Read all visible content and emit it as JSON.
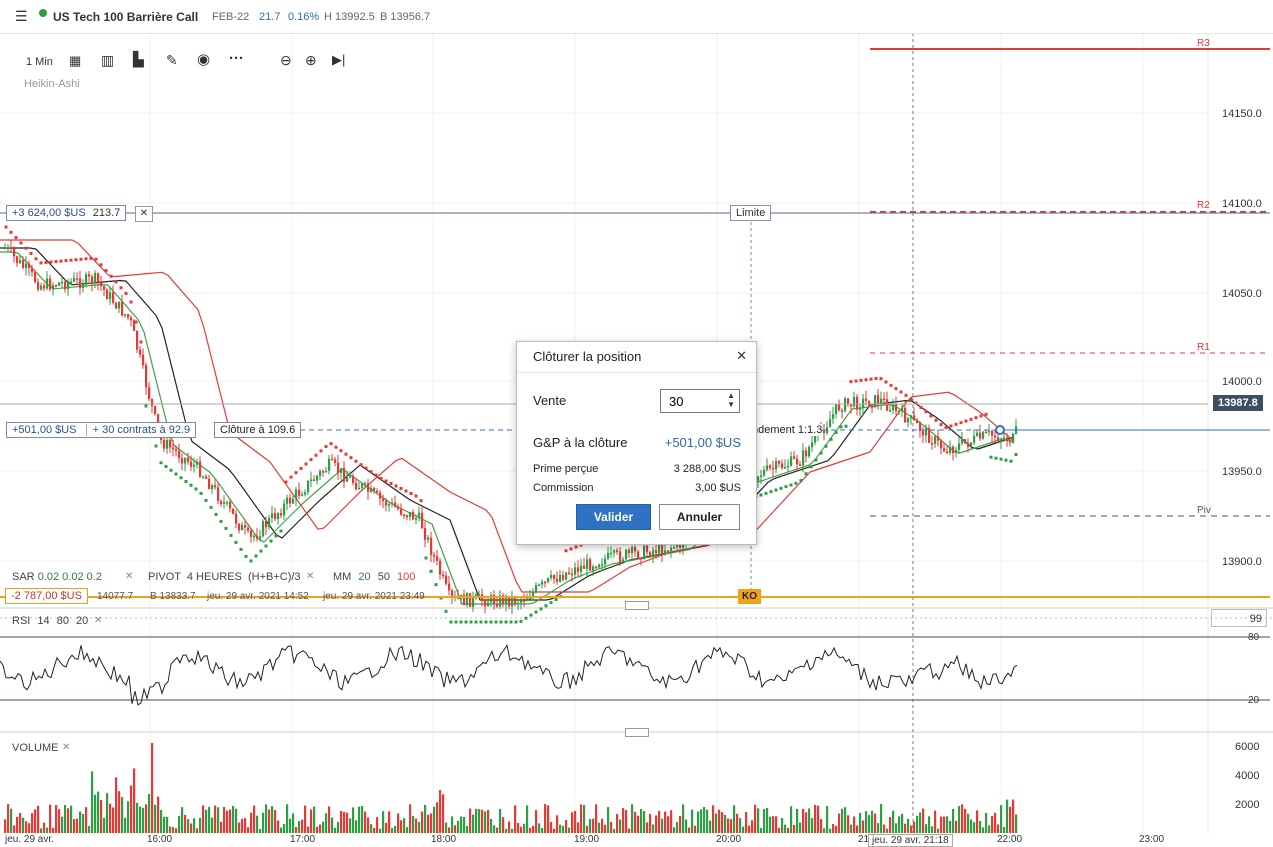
{
  "header": {
    "menu_icon": "hamburger-icon",
    "instrument": "US Tech 100 Barrière Call",
    "expiry": "FEB-22",
    "change": "21.7",
    "change_pct": "0.16%",
    "high": "H 13992.5",
    "low": "B 13956.7",
    "status_color": "#2e9e44"
  },
  "toolbar": {
    "timeframe": "1 Min",
    "chart_type": "Heikin-Ashi",
    "icons": [
      "calendar-icon",
      "candles-icon",
      "bar-chart-icon",
      "pencil-icon",
      "eye-icon",
      "more-icon",
      "zoom-out-icon",
      "zoom-in-icon",
      "play-end-icon"
    ]
  },
  "price_axis": {
    "labels": [
      "14150.0",
      "14100.0",
      "14050.0",
      "14000.0",
      "13950.0",
      "13900.0"
    ],
    "current_price": "13987.8"
  },
  "pivot_labels": {
    "r3": "R3",
    "r2": "R2",
    "r1": "R1",
    "piv": "Piv"
  },
  "orders": {
    "limit_pnl": "+3 624,00 $US",
    "limit_points": "213.7",
    "limit_label": "Limite",
    "position_pnl": "+501,00 $US",
    "position_info": "+ 30 contrats à 92.9",
    "close_at": "Clôture à 109.6",
    "ratio_label": "ndement 1:1.3",
    "ko_pnl": "-2 787,00 $US",
    "ko_info1": "14077.7",
    "ko_info2": "B 13833.7",
    "ko_info3": "jeu. 29 avr. 2021 14:52",
    "ko_info4": "jeu. 29 avr. 2021 23:49",
    "ko_label": "KO"
  },
  "indicators": {
    "sar": {
      "name": "SAR",
      "v1": "0.02",
      "v2": "0.02",
      "v3": "0.2"
    },
    "pivot": {
      "name": "PIVOT",
      "period": "4 HEURES",
      "formula": "(H+B+C)/3"
    },
    "mm": {
      "name": "MM",
      "v1": "20",
      "v2": "50",
      "v3": "100"
    },
    "rsi": {
      "name": "RSI",
      "v1": "14",
      "v2": "80",
      "v3": "20",
      "value": "99",
      "upper": "80",
      "lower": "20"
    },
    "volume": {
      "name": "VOLUME",
      "labels": [
        "6000",
        "4000",
        "2000"
      ]
    }
  },
  "time_axis": {
    "labels": [
      "jeu. 29 avr.",
      "16:00",
      "17:00",
      "18:00",
      "19:00",
      "20:00",
      "21",
      "jeu. 29 avr. 21:18",
      "22:00",
      "23:00"
    ]
  },
  "dialog": {
    "title": "Clôturer la position",
    "close_icon": "close-icon",
    "side_label": "Vente",
    "quantity": "30",
    "pnl_label": "G&P à la clôture",
    "pnl_value": "+501,00 $US",
    "premium_label": "Prime perçue",
    "premium_value": "3 288,00 $US",
    "commission_label": "Commission",
    "commission_value": "3,00 $US",
    "confirm": "Valider",
    "cancel": "Annuler"
  },
  "colors": {
    "bull": "#2e9e44",
    "bear": "#e53935",
    "ma_black": "#222222",
    "ma_red": "#e53935",
    "ma_green": "#43a047",
    "accent_blue": "#2f72c4",
    "ko_orange": "#f0a21a"
  }
}
